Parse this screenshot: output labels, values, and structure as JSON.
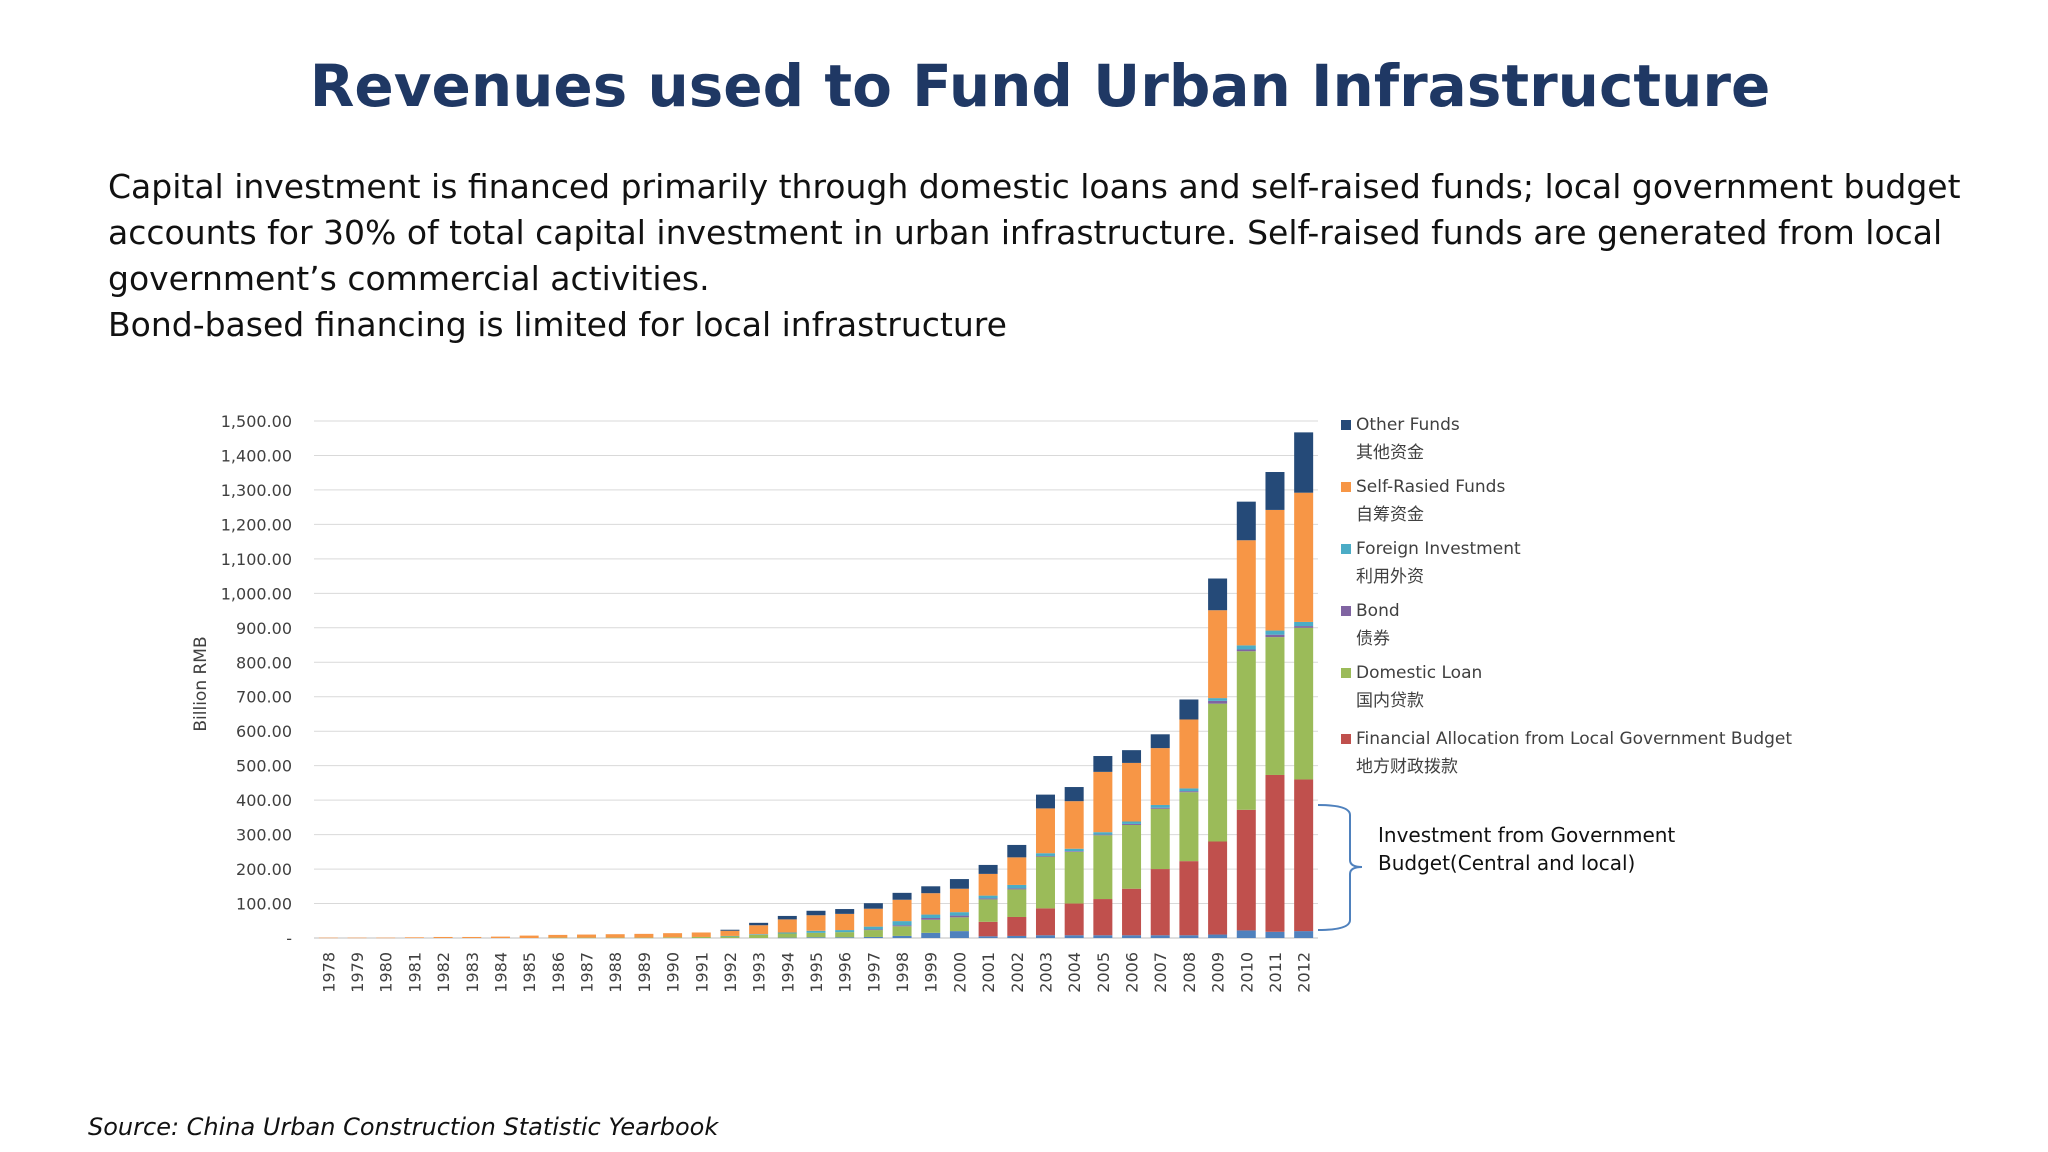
{
  "slide": {
    "title": "Revenues used to Fund Urban Infrastructure",
    "paragraph_1": "Capital investment is financed primarily through domestic loans and self-raised funds; local government budget accounts for 30% of total capital investment in urban infrastructure. Self-raised funds are generated from local government’s commercial activities.",
    "paragraph_2": "Bond-based financing is limited for local infrastructure",
    "source": "Source: China Urban Construction Statistic Yearbook"
  },
  "chart_data": {
    "type": "bar",
    "stacked": true,
    "ylabel": "Billion RMB",
    "ylim": [
      0,
      1500
    ],
    "grid": true,
    "legend_position": "right",
    "y_ticks": [
      {
        "value": 0,
        "label": "-"
      },
      {
        "value": 100,
        "label": "100.00"
      },
      {
        "value": 200,
        "label": "200.00"
      },
      {
        "value": 300,
        "label": "300.00"
      },
      {
        "value": 400,
        "label": "400.00"
      },
      {
        "value": 500,
        "label": "500.00"
      },
      {
        "value": 600,
        "label": "600.00"
      },
      {
        "value": 700,
        "label": "700.00"
      },
      {
        "value": 800,
        "label": "800.00"
      },
      {
        "value": 900,
        "label": "900.00"
      },
      {
        "value": 1000,
        "label": "1,000.00"
      },
      {
        "value": 1100,
        "label": "1,100.00"
      },
      {
        "value": 1200,
        "label": "1,200.00"
      },
      {
        "value": 1300,
        "label": "1,300.00"
      },
      {
        "value": 1400,
        "label": "1,400.00"
      },
      {
        "value": 1500,
        "label": "1,500.00"
      }
    ],
    "categories": [
      "1978",
      "1979",
      "1980",
      "1981",
      "1982",
      "1983",
      "1984",
      "1985",
      "1986",
      "1987",
      "1988",
      "1989",
      "1990",
      "1991",
      "1992",
      "1993",
      "1994",
      "1995",
      "1996",
      "1997",
      "1998",
      "1999",
      "2000",
      "2001",
      "2002",
      "2003",
      "2004",
      "2005",
      "2006",
      "2007",
      "2008",
      "2009",
      "2010",
      "2011",
      "2012"
    ],
    "series": [
      {
        "key": "central",
        "color": "#4f81bd",
        "values": [
          0,
          0,
          0,
          0,
          0,
          0,
          0,
          0,
          0,
          0,
          0,
          0,
          0,
          0,
          0,
          0,
          1,
          2,
          2,
          3,
          6,
          15,
          20,
          5,
          6,
          8,
          8,
          8,
          8,
          8,
          8,
          10,
          22,
          18,
          20
        ]
      },
      {
        "key": "local_budget",
        "name": "Financial Allocation from Local Government Budget",
        "name_cn": "地方财政拨款",
        "color": "#c0504d",
        "values": [
          0,
          0,
          0,
          0,
          0,
          0,
          0,
          0,
          0,
          0,
          0,
          0,
          0,
          0,
          0,
          0,
          0,
          0,
          0,
          0,
          0,
          0,
          0,
          42,
          55,
          78,
          92,
          105,
          135,
          192,
          215,
          270,
          350,
          455,
          440
        ]
      },
      {
        "key": "domestic_loan",
        "name": "Domestic Loan",
        "name_cn": "国内贷款",
        "color": "#9bbb59",
        "values": [
          0,
          0,
          0,
          0,
          0,
          0,
          0,
          0,
          1,
          1,
          1,
          1,
          2,
          3,
          5,
          9,
          12,
          13,
          15,
          20,
          28,
          38,
          40,
          65,
          80,
          150,
          150,
          185,
          185,
          175,
          200,
          400,
          460,
          400,
          440
        ]
      },
      {
        "key": "bond",
        "name": "Bond",
        "name_cn": "债券",
        "color": "#8064a2",
        "values": [
          0,
          0,
          0,
          0,
          0,
          0,
          0,
          0,
          0,
          0,
          0,
          0,
          0,
          0,
          0,
          0,
          0,
          0,
          0,
          2,
          3,
          5,
          5,
          3,
          3,
          2,
          2,
          2,
          3,
          3,
          3,
          8,
          5,
          7,
          5
        ]
      },
      {
        "key": "foreign_investment",
        "name": "Foreign Investment",
        "name_cn": "利用外资",
        "color": "#4bacc6",
        "values": [
          0,
          0,
          0,
          0,
          0,
          0,
          0,
          0,
          0,
          0,
          0,
          0,
          0,
          0,
          1,
          2,
          3,
          6,
          6,
          8,
          12,
          10,
          10,
          8,
          10,
          8,
          7,
          7,
          7,
          8,
          8,
          8,
          12,
          12,
          12
        ]
      },
      {
        "key": "self_raised",
        "name": "Self-Rasied Funds",
        "name_cn": "自筹资金",
        "color": "#f79646",
        "values": [
          1,
          1,
          1,
          2,
          3,
          3,
          4,
          7,
          8,
          9,
          10,
          11,
          12,
          13,
          15,
          26,
          38,
          45,
          47,
          52,
          62,
          62,
          68,
          63,
          80,
          130,
          138,
          175,
          170,
          165,
          200,
          255,
          305,
          350,
          375
        ]
      },
      {
        "key": "other",
        "name": "Other Funds",
        "name_cn": "其他资金",
        "color": "#254a78",
        "values": [
          0,
          0,
          0,
          0,
          0,
          0,
          0,
          0,
          0,
          0,
          0,
          0,
          0,
          0,
          3,
          7,
          10,
          13,
          14,
          16,
          20,
          20,
          28,
          26,
          36,
          40,
          41,
          46,
          37,
          40,
          58,
          92,
          112,
          110,
          175
        ]
      }
    ],
    "annotation": {
      "text_line_1": "Investment from Government",
      "text_line_2": "Budget(Central and local)"
    }
  }
}
